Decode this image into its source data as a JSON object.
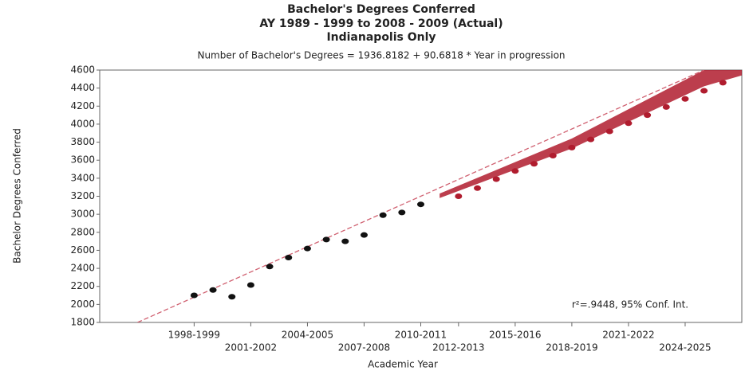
{
  "chart_data": {
    "type": "scatter",
    "title": "Bachelor's Degrees Conferred",
    "subtitle": "AY 1989 - 1999 to 2008 - 2009 (Actual)",
    "subtitle2": "Indianapolis Only",
    "equation": "Number of Bachelor's Degrees = 1936.8182 + 90.6818 * Year in progression",
    "x_label": "Academic Year",
    "y_label": "Bachelor Degrees Conferred",
    "annotation": "r²=.9448, 95% Conf. Int.",
    "xlim": [
      1993,
      2027
    ],
    "ylim": [
      1800,
      4600
    ],
    "yticks": [
      1800,
      2000,
      2200,
      2400,
      2600,
      2800,
      3000,
      3200,
      3400,
      3600,
      3800,
      4000,
      4200,
      4400,
      4600
    ],
    "xticks": [
      {
        "value": 1998,
        "label": "1998-1999"
      },
      {
        "value": 2001,
        "label": "2001-2002"
      },
      {
        "value": 2004,
        "label": "2004-2005"
      },
      {
        "value": 2007,
        "label": "2007-2008"
      },
      {
        "value": 2010,
        "label": "2010-2011"
      },
      {
        "value": 2012,
        "label": "2012-2013"
      },
      {
        "value": 2015,
        "label": "2015-2016"
      },
      {
        "value": 2018,
        "label": "2018-2019"
      },
      {
        "value": 2021,
        "label": "2021-2022"
      },
      {
        "value": 2024,
        "label": "2024-2025"
      }
    ],
    "series": [
      {
        "color": "#111111",
        "x": [
          1998,
          1999,
          2000,
          2001,
          2002,
          2003,
          2004,
          2005,
          2006,
          2007,
          2008,
          2009,
          2010
        ],
        "values": [
          2100,
          2160,
          2085,
          2215,
          2420,
          2520,
          2620,
          2720,
          2700,
          2770,
          2990,
          3020,
          3110
        ]
      },
      {
        "color": "#b01c2e",
        "x": [
          2012,
          2013,
          2014,
          2015,
          2016,
          2017,
          2018,
          2019,
          2020,
          2021,
          2022,
          2023,
          2024,
          2025,
          2026
        ],
        "values": [
          3200,
          3290,
          3390,
          3480,
          3560,
          3650,
          3740,
          3830,
          3920,
          4010,
          4100,
          4190,
          4280,
          4370,
          4460
        ]
      }
    ],
    "trend": {
      "color": "#d06070",
      "x": [
        1995,
        2025
      ],
      "values": [
        1800,
        4600
      ]
    },
    "band": {
      "color": "#b01c2e",
      "x": [
        2011,
        2018,
        2025,
        2027
      ],
      "upper": [
        3230,
        3840,
        4600,
        4700
      ],
      "lower": [
        3180,
        3730,
        4420,
        4540
      ]
    }
  }
}
